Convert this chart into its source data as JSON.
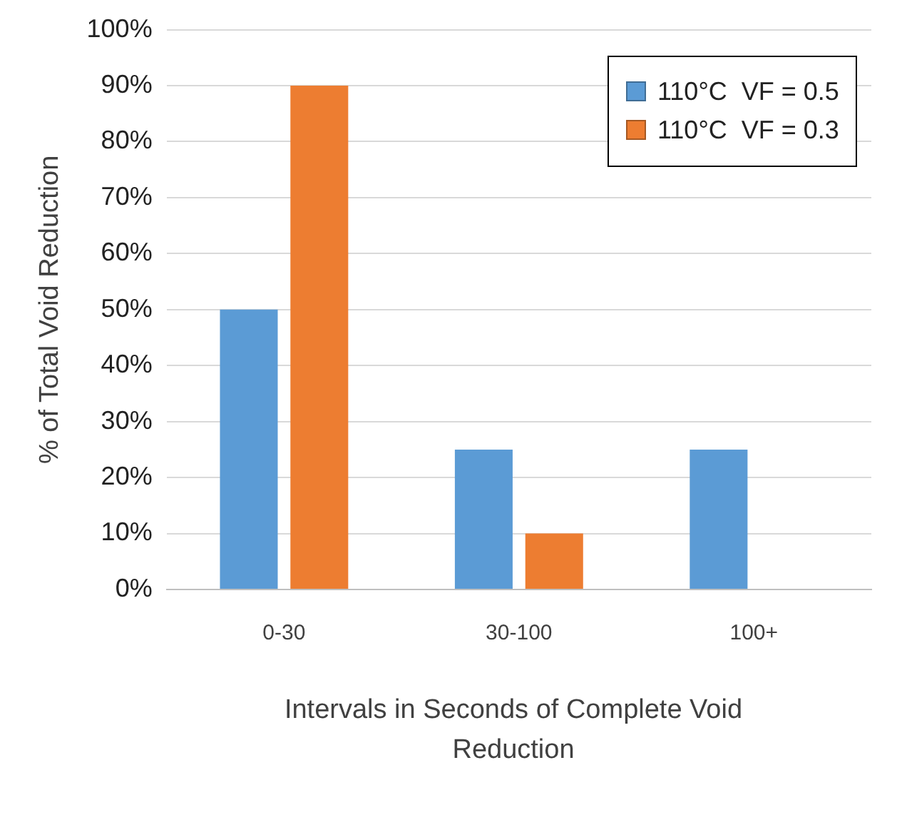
{
  "chart_data": {
    "type": "bar",
    "categories": [
      "0-30",
      "30-100",
      "100+"
    ],
    "series": [
      {
        "name": "110°C  VF = 0.5",
        "color": "#5b9bd5",
        "values": [
          50,
          25,
          25
        ]
      },
      {
        "name": "110°C  VF = 0.3",
        "color": "#ed7d31",
        "values": [
          90,
          10,
          0
        ]
      }
    ],
    "xlabel": "Intervals in Seconds of Complete Void Reduction",
    "ylabel": "% of Total Void Reduction",
    "ylim": [
      0,
      100
    ],
    "yticks": [
      {
        "value": 0,
        "label": "0%"
      },
      {
        "value": 10,
        "label": "10%"
      },
      {
        "value": 20,
        "label": "20%"
      },
      {
        "value": 30,
        "label": "30%"
      },
      {
        "value": 40,
        "label": "40%"
      },
      {
        "value": 50,
        "label": "50%"
      },
      {
        "value": 60,
        "label": "60%"
      },
      {
        "value": 70,
        "label": "70%"
      },
      {
        "value": 80,
        "label": "80%"
      },
      {
        "value": 90,
        "label": "90%"
      },
      {
        "value": 100,
        "label": "100%"
      }
    ],
    "grid": "y",
    "legend": "top right"
  }
}
